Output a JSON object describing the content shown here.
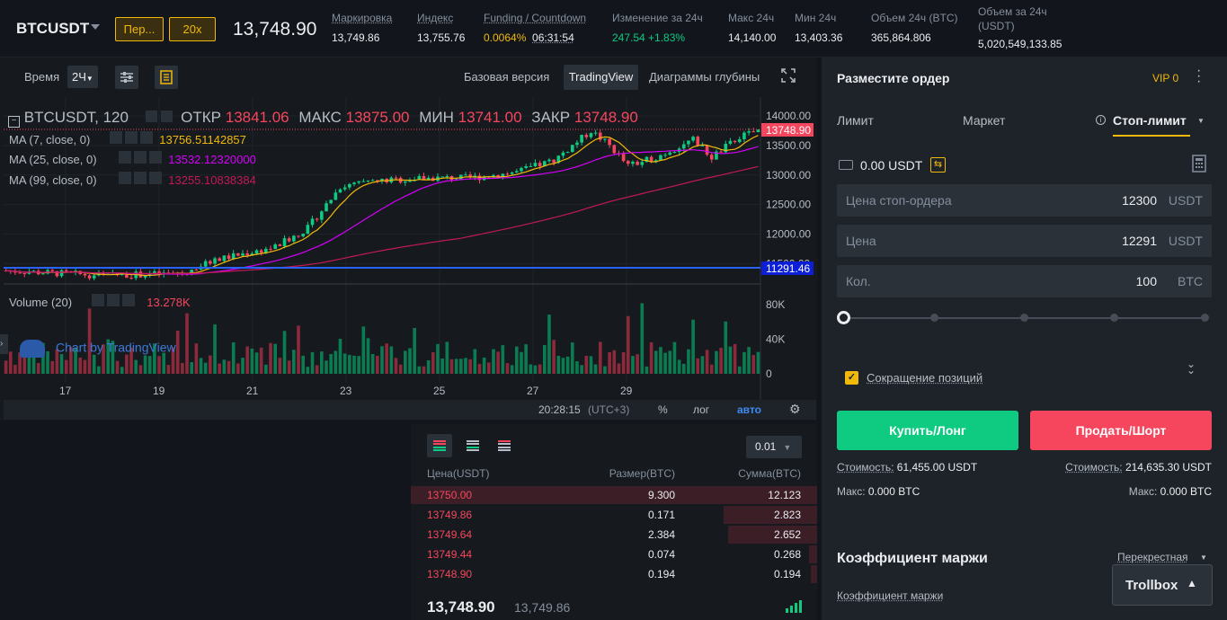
{
  "header": {
    "symbol": "BTCUSDT",
    "margin_mode": "Пер...",
    "leverage": "20x",
    "last_price": "13,748.90",
    "stats": [
      {
        "label": "Маркировка",
        "value": "13,749.86"
      },
      {
        "label": "Индекс",
        "value": "13,755.76"
      },
      {
        "label": "Funding / Countdown",
        "value": "0.0064%",
        "value2": "06:31:54"
      },
      {
        "label": "Изменение за 24ч",
        "value": "247.54 +1.83%"
      },
      {
        "label": "Макс 24ч",
        "value": "14,140.00"
      },
      {
        "label": "Мин 24ч",
        "value": "13,403.36"
      },
      {
        "label": "Объем 24ч (BTC)",
        "value": "365,864.806"
      },
      {
        "label": "Объем за 24ч",
        "label2": "(USDT)",
        "value": "5,020,549,133.85"
      }
    ]
  },
  "chart_toolbar": {
    "time_label": "Время",
    "interval": "2Ч",
    "views": [
      "Базовая версия",
      "TradingView",
      "Диаграммы глубины"
    ],
    "active_view": "TradingView"
  },
  "chart": {
    "title": "BTCUSDT, 120",
    "open_label": "ОТКР",
    "open": "13841.06",
    "high_label": "МАКС",
    "high": "13875.00",
    "low_label": "МИН",
    "low": "13741.00",
    "close_label": "ЗАКР",
    "close": "13748.90",
    "ma": [
      {
        "label": "MA (7, close, 0)",
        "value": "13756.51142857",
        "color": "#f0b90b"
      },
      {
        "label": "MA (25, close, 0)",
        "value": "13532.12320000",
        "color": "#d500f9"
      },
      {
        "label": "MA (99, close, 0)",
        "value": "13255.10838384",
        "color": "#c2185b"
      }
    ],
    "price_ticks": [
      "14000.00",
      "13500.00",
      "13000.00",
      "12500.00",
      "12000.00",
      "11500.00"
    ],
    "current_price_tag": "13748.90",
    "line_price_tag": "11291.46",
    "volume_label": "Volume (20)",
    "volume_value": "13.278K",
    "volume_ticks": [
      "80K",
      "40K",
      "0"
    ],
    "date_ticks": [
      "17",
      "19",
      "21",
      "23",
      "25",
      "27",
      "29"
    ],
    "watermark": "Chart by TradingView",
    "clock": "20:28:15",
    "tz": "(UTC+3)",
    "pct": "%",
    "log": "лог",
    "auto": "авто"
  },
  "orderbook": {
    "precision": "0.01",
    "headers": [
      "Цена(USDT)",
      "Размер(BTC)",
      "Сумма(BTC)"
    ],
    "asks": [
      {
        "price": "13750.00",
        "size": "9.300",
        "total": "12.123",
        "depth": 1.0
      },
      {
        "price": "13749.86",
        "size": "0.171",
        "total": "2.823",
        "depth": 0.23
      },
      {
        "price": "13749.64",
        "size": "2.384",
        "total": "2.652",
        "depth": 0.22
      },
      {
        "price": "13749.44",
        "size": "0.074",
        "total": "0.268",
        "depth": 0.02
      },
      {
        "price": "13748.90",
        "size": "0.194",
        "total": "0.194",
        "depth": 0.016
      }
    ],
    "last_price": "13,748.90",
    "mark_price": "13,749.86"
  },
  "order_panel": {
    "title": "Разместите ордер",
    "vip": "VIP 0",
    "tabs": [
      "Лимит",
      "Маркет",
      "Стоп-лимит"
    ],
    "active_tab": "Стоп-лимит",
    "balance": "0.00 USDT",
    "stop_price_label": "Цена стоп-ордера",
    "stop_price": "12300",
    "stop_unit": "USDT",
    "price_label": "Цена",
    "price": "12291",
    "price_unit": "USDT",
    "qty_label": "Кол.",
    "qty": "100",
    "qty_unit": "BTC",
    "reduce_only": "Сокращение позиций",
    "buy_label": "Купить/Лонг",
    "sell_label": "Продать/Шорт",
    "buy_cost_label": "Стоимость:",
    "buy_cost": "61,455.00 USDT",
    "sell_cost_label": "Стоимость:",
    "sell_cost": "214,635.30 USDT",
    "buy_max_label": "Макс:",
    "buy_max": "0.000 BTC",
    "sell_max_label": "Макс:",
    "sell_max": "0.000 BTC",
    "margin_title": "Коэффициент маржи",
    "margin_mode": "Перекрестная",
    "margin_ratio_label": "Коэффициент маржи",
    "trollbox": "Trollbox"
  },
  "colors": {
    "up": "#0ecb81",
    "down": "#f6465d",
    "accent": "#f0b90b",
    "bg": "#161a1e"
  }
}
